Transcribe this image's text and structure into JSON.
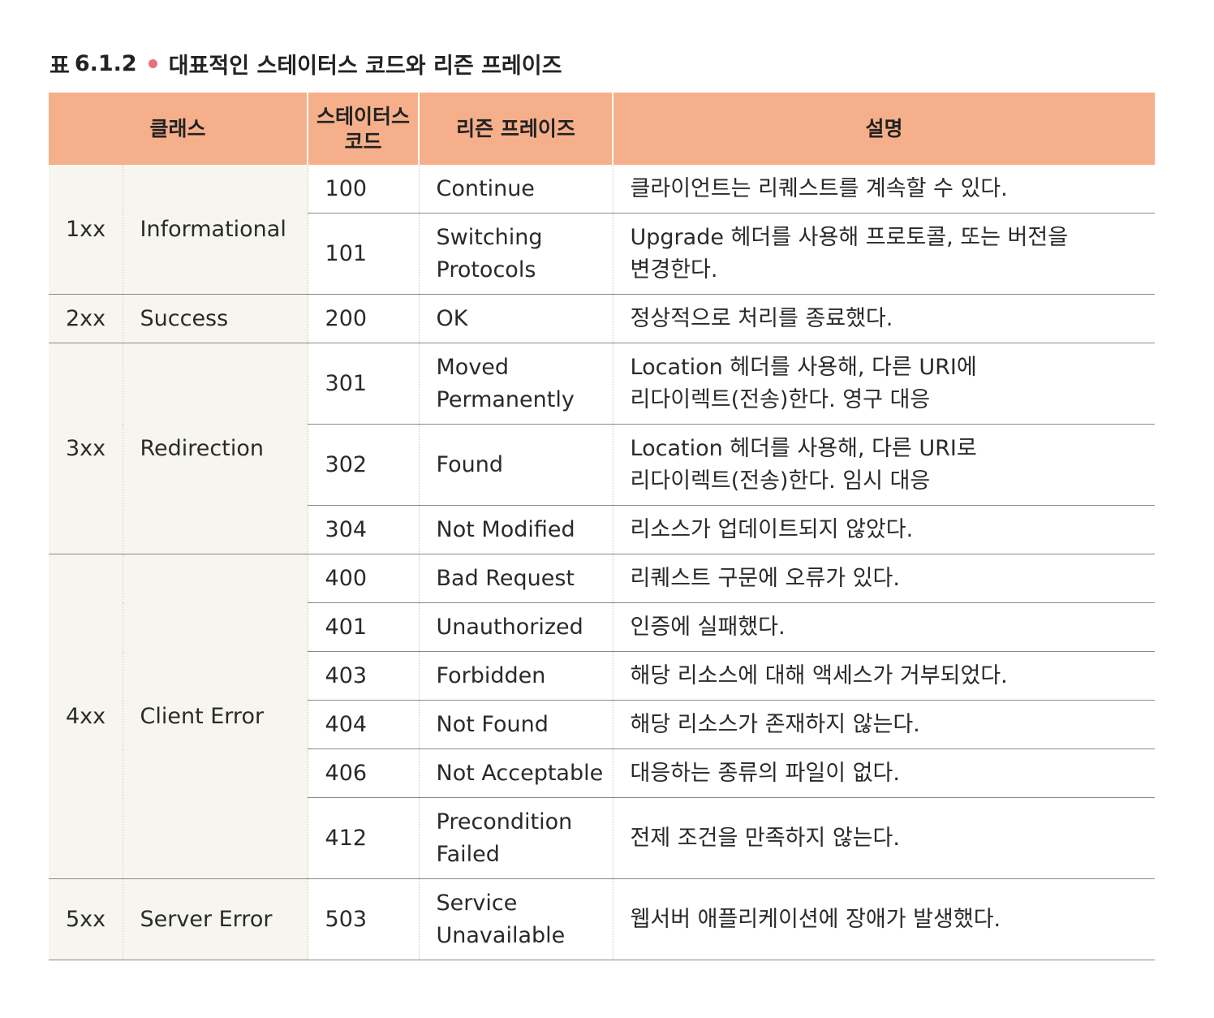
{
  "caption": {
    "label": "표",
    "number": "6.1.2",
    "title": "대표적인 스테이터스 코드와 리즌 프레이즈"
  },
  "headers": {
    "class": "클래스",
    "status_line1": "스테이터스",
    "status_line2": "코드",
    "reason": "리즌 프레이즈",
    "description": "설명"
  },
  "groups": [
    {
      "code": "1xx",
      "name": "Informational",
      "rows": [
        {
          "status": "100",
          "reason": [
            "Continue"
          ],
          "desc": [
            "클라이언트는 리퀘스트를 계속할 수 있다."
          ]
        },
        {
          "status": "101",
          "reason": [
            "Switching",
            "Protocols"
          ],
          "desc": [
            "Upgrade 헤더를 사용해 프로토콜, 또는 버전을",
            "변경한다."
          ]
        }
      ]
    },
    {
      "code": "2xx",
      "name": "Success",
      "rows": [
        {
          "status": "200",
          "reason": [
            "OK"
          ],
          "desc": [
            "정상적으로 처리를 종료했다."
          ]
        }
      ]
    },
    {
      "code": "3xx",
      "name": "Redirection",
      "rows": [
        {
          "status": "301",
          "reason": [
            "Moved",
            "Permanently"
          ],
          "desc": [
            "Location 헤더를 사용해, 다른 URI에",
            "리다이렉트(전송)한다. 영구 대응"
          ]
        },
        {
          "status": "302",
          "reason": [
            "Found"
          ],
          "desc": [
            "Location 헤더를 사용해, 다른 URI로",
            "리다이렉트(전송)한다. 임시 대응"
          ]
        },
        {
          "status": "304",
          "reason": [
            "Not Modified"
          ],
          "desc": [
            "리소스가 업데이트되지 않았다."
          ]
        }
      ]
    },
    {
      "code": "4xx",
      "name": "Client Error",
      "rows": [
        {
          "status": "400",
          "reason": [
            "Bad Request"
          ],
          "desc": [
            "리퀘스트 구문에 오류가 있다."
          ]
        },
        {
          "status": "401",
          "reason": [
            "Unauthorized"
          ],
          "desc": [
            "인증에 실패했다."
          ]
        },
        {
          "status": "403",
          "reason": [
            "Forbidden"
          ],
          "desc": [
            "해당 리소스에 대해 액세스가 거부되었다."
          ]
        },
        {
          "status": "404",
          "reason": [
            "Not Found"
          ],
          "desc": [
            "해당 리소스가 존재하지 않는다."
          ]
        },
        {
          "status": "406",
          "reason": [
            "Not Acceptable"
          ],
          "desc": [
            "대응하는 종류의 파일이 없다."
          ]
        },
        {
          "status": "412",
          "reason": [
            "Precondition",
            "Failed"
          ],
          "desc": [
            "전제 조건을 만족하지 않는다."
          ]
        }
      ]
    },
    {
      "code": "5xx",
      "name": "Server Error",
      "rows": [
        {
          "status": "503",
          "reason": [
            "Service",
            "Unavailable"
          ],
          "desc": [
            "웹서버 애플리케이션에 장애가 발생했다."
          ]
        }
      ]
    }
  ]
}
